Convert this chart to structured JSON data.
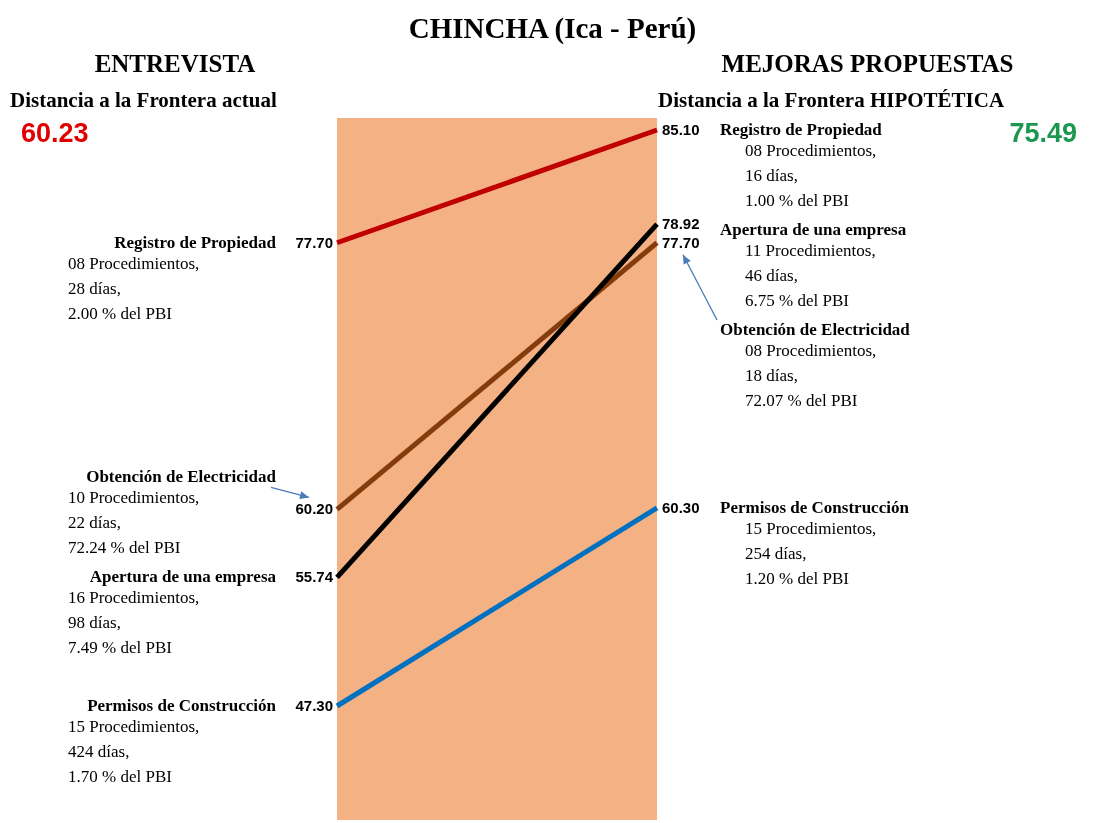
{
  "chart_data": {
    "type": "line",
    "title": "CHINCHA (Ica - Perú)",
    "categories": [
      null,
      null
    ],
    "series": [
      {
        "name": "Registro de Propiedad",
        "color": "#c00000",
        "values": [
          77.7,
          85.1
        ],
        "value_labels": [
          "77.70",
          "85.10"
        ]
      },
      {
        "name": "Obtención de Electricidad",
        "color": "#843c0c",
        "values": [
          60.2,
          77.7
        ],
        "value_labels": [
          "60.20",
          "77.70"
        ]
      },
      {
        "name": "Apertura de una empresa",
        "color": "#000000",
        "values": [
          55.74,
          78.92
        ],
        "value_labels": [
          "55.74",
          "78.92"
        ]
      },
      {
        "name": "Permisos de Construcción",
        "color": "#0070c0",
        "values": [
          47.3,
          60.3
        ],
        "value_labels": [
          "47.30",
          "60.30"
        ]
      }
    ],
    "tick_labels": false,
    "annotations": [
      "ENTREVISTA",
      "MEJORAS PROPUESTAS",
      "Distancia a la Frontera actual",
      "60.23",
      "Distancia a la Frontera HIPOTÉTICA",
      "75.49",
      "08 Procedimientos,\n28 días,\n2.00 % del PBI",
      "10 Procedimientos,\n22 días,\n72.24 % del PBI",
      "16 Procedimientos,\n98 días,\n7.49 % del PBI",
      "15 Procedimientos,\n424 días,\n1.70 % del PBI",
      "08 Procedimientos,\n16 días,\n1.00 % del PBI",
      "08 Procedimientos,\n18 días,\n72.07 % del PBI",
      "11 Procedimientos,\n46 días,\n6.75 % del PBI",
      "15 Procedimientos,\n254 días,\n1.20 % del PBI"
    ]
  }
}
